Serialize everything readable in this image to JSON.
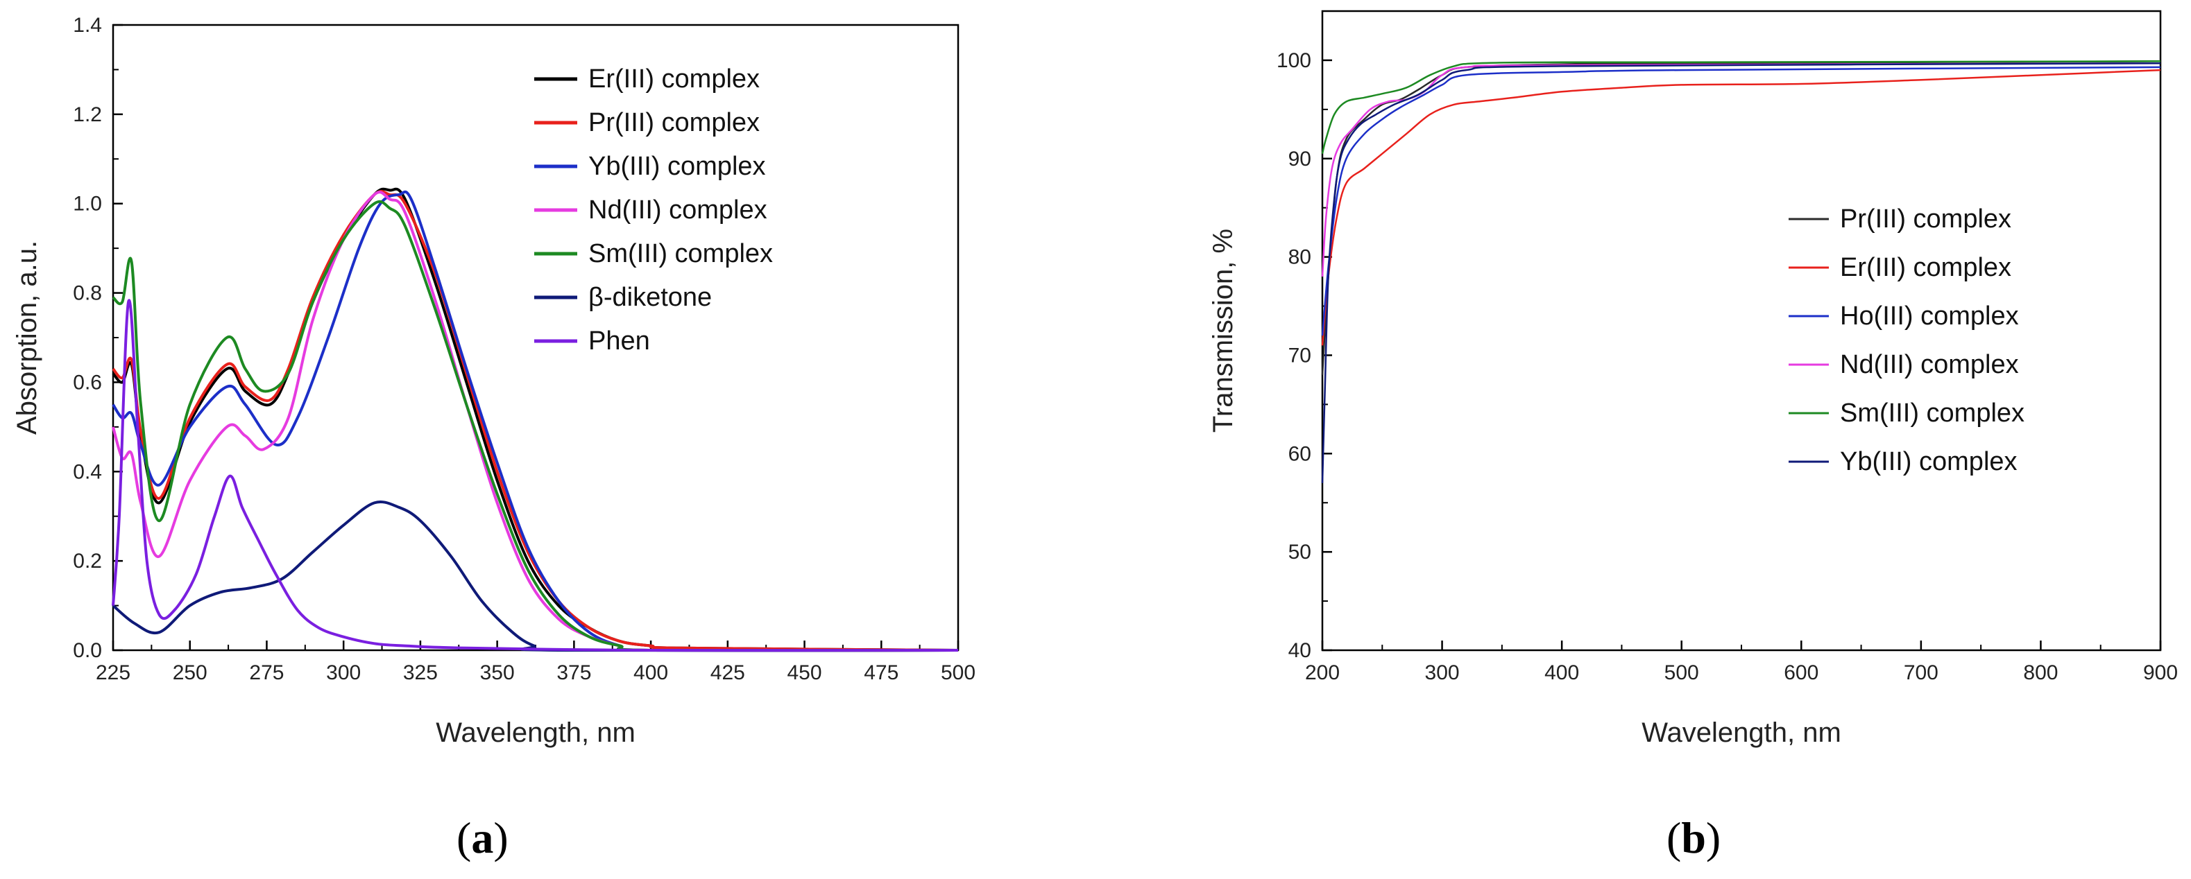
{
  "chart_data": [
    {
      "id": "a",
      "type": "line",
      "panel_label": "a",
      "title": "",
      "xlabel": "Wavelength, nm",
      "ylabel": "Absorption, a.u.",
      "xlim": [
        225,
        500
      ],
      "ylim": [
        0.0,
        1.4
      ],
      "xticks": [
        "225",
        "250",
        "275",
        "300",
        "325",
        "350",
        "375",
        "400",
        "425",
        "450",
        "475",
        "500"
      ],
      "yticks": [
        "0.0",
        "0.2",
        "0.4",
        "0.6",
        "0.8",
        "1.0",
        "1.2",
        "1.4"
      ],
      "legend_position": "top-right",
      "series": [
        {
          "name": "Er(III) complex",
          "color": "#000000",
          "x": [
            225,
            228,
            231,
            234,
            240,
            250,
            262,
            268,
            276,
            282,
            290,
            300,
            310,
            315,
            320,
            330,
            340,
            350,
            360,
            370,
            380,
            390,
            400,
            410,
            500
          ],
          "y": [
            0.62,
            0.6,
            0.64,
            0.48,
            0.33,
            0.51,
            0.63,
            0.58,
            0.55,
            0.62,
            0.78,
            0.92,
            1.02,
            1.03,
            1.01,
            0.82,
            0.6,
            0.38,
            0.2,
            0.1,
            0.05,
            0.02,
            0.01,
            0.005,
            0.0
          ]
        },
        {
          "name": "Pr(III) complex",
          "color": "#e8211c",
          "x": [
            225,
            228,
            231,
            234,
            240,
            250,
            262,
            268,
            276,
            282,
            290,
            300,
            310,
            315,
            320,
            330,
            340,
            350,
            360,
            370,
            380,
            390,
            400,
            410,
            500
          ],
          "y": [
            0.63,
            0.61,
            0.65,
            0.49,
            0.34,
            0.52,
            0.64,
            0.59,
            0.56,
            0.63,
            0.79,
            0.93,
            1.02,
            1.02,
            1.0,
            0.84,
            0.62,
            0.4,
            0.22,
            0.11,
            0.05,
            0.02,
            0.01,
            0.005,
            0.0
          ]
        },
        {
          "name": "Yb(III) complex",
          "color": "#1c2fc8",
          "x": [
            225,
            228,
            231,
            234,
            240,
            250,
            262,
            268,
            278,
            285,
            295,
            305,
            312,
            318,
            322,
            330,
            340,
            350,
            360,
            370,
            380,
            390,
            400,
            500
          ],
          "y": [
            0.55,
            0.52,
            0.53,
            0.46,
            0.37,
            0.5,
            0.59,
            0.55,
            0.46,
            0.52,
            0.7,
            0.9,
            1.0,
            1.02,
            1.01,
            0.85,
            0.63,
            0.42,
            0.23,
            0.11,
            0.04,
            0.01,
            0.0,
            0.0
          ]
        },
        {
          "name": "Nd(III) complex",
          "color": "#e63be0",
          "x": [
            225,
            228,
            231,
            234,
            240,
            250,
            262,
            268,
            274,
            282,
            290,
            300,
            310,
            315,
            320,
            330,
            340,
            350,
            360,
            370,
            380,
            390,
            400,
            500
          ],
          "y": [
            0.5,
            0.43,
            0.44,
            0.33,
            0.21,
            0.38,
            0.5,
            0.48,
            0.45,
            0.52,
            0.74,
            0.92,
            1.02,
            1.01,
            0.98,
            0.78,
            0.55,
            0.33,
            0.16,
            0.07,
            0.03,
            0.01,
            0.0,
            0.0
          ]
        },
        {
          "name": "Sm(III) complex",
          "color": "#1d8a22",
          "x": [
            225,
            228,
            231,
            234,
            240,
            250,
            262,
            268,
            274,
            282,
            290,
            300,
            310,
            315,
            320,
            330,
            340,
            350,
            360,
            370,
            380,
            390,
            400,
            500
          ],
          "y": [
            0.79,
            0.78,
            0.87,
            0.55,
            0.29,
            0.55,
            0.7,
            0.63,
            0.58,
            0.62,
            0.78,
            0.92,
            1.0,
            0.99,
            0.95,
            0.76,
            0.55,
            0.35,
            0.18,
            0.08,
            0.03,
            0.01,
            0.0,
            0.0
          ]
        },
        {
          "name": "β-diketone",
          "color": "#0f1a78",
          "x": [
            225,
            232,
            240,
            250,
            260,
            270,
            280,
            290,
            300,
            310,
            318,
            325,
            335,
            345,
            355,
            362,
            370,
            500
          ],
          "y": [
            0.1,
            0.06,
            0.04,
            0.1,
            0.13,
            0.14,
            0.16,
            0.22,
            0.28,
            0.33,
            0.32,
            0.29,
            0.21,
            0.11,
            0.04,
            0.01,
            0.0,
            0.0
          ]
        },
        {
          "name": "Phen",
          "color": "#7a1fe0",
          "x": [
            225,
            227,
            230,
            233,
            236,
            240,
            245,
            252,
            258,
            263,
            267,
            272,
            278,
            285,
            292,
            300,
            310,
            320,
            340,
            400,
            500
          ],
          "y": [
            0.1,
            0.3,
            0.78,
            0.5,
            0.2,
            0.08,
            0.09,
            0.17,
            0.3,
            0.39,
            0.32,
            0.25,
            0.17,
            0.09,
            0.05,
            0.03,
            0.015,
            0.01,
            0.005,
            0.0,
            0.0
          ]
        }
      ]
    },
    {
      "id": "b",
      "type": "line",
      "panel_label": "b",
      "title": "",
      "xlabel": "Wavelength, nm",
      "ylabel": "Transmission, %",
      "xlim": [
        200,
        900
      ],
      "ylim": [
        40,
        105
      ],
      "xticks": [
        "200",
        "300",
        "400",
        "500",
        "600",
        "700",
        "800",
        "900"
      ],
      "yticks": [
        "40",
        "50",
        "60",
        "70",
        "80",
        "90",
        "100"
      ],
      "legend_position": "center-right",
      "series": [
        {
          "name": "Pr(III) complex",
          "color": "#2a2a2a",
          "x": [
            200,
            205,
            212,
            220,
            235,
            250,
            265,
            280,
            300,
            320,
            400,
            500,
            900
          ],
          "y": [
            68,
            78,
            88,
            92,
            94,
            95.5,
            96,
            97,
            98.5,
            99.3,
            99.6,
            99.7,
            99.9
          ]
        },
        {
          "name": "Er(III) complex",
          "color": "#e8211c",
          "x": [
            200,
            205,
            212,
            220,
            235,
            250,
            270,
            290,
            310,
            330,
            360,
            400,
            450,
            500,
            600,
            700,
            800,
            900
          ],
          "y": [
            71,
            78,
            84,
            87.5,
            89,
            90.5,
            92.5,
            94.5,
            95.5,
            95.8,
            96.2,
            96.8,
            97.2,
            97.5,
            97.6,
            98.0,
            98.5,
            99.0
          ]
        },
        {
          "name": "Ho(III) complex",
          "color": "#1c2fc8",
          "x": [
            200,
            205,
            212,
            220,
            235,
            250,
            265,
            285,
            300,
            320,
            400,
            500,
            900
          ],
          "y": [
            72,
            79,
            86,
            90,
            92.5,
            94,
            95.2,
            96.5,
            97.5,
            98.5,
            98.8,
            99.0,
            99.3
          ]
        },
        {
          "name": "Nd(III) complex",
          "color": "#e63be0",
          "x": [
            200,
            203,
            208,
            215,
            225,
            240,
            255,
            270,
            285,
            300,
            320,
            400,
            900
          ],
          "y": [
            78,
            84,
            89,
            91.5,
            93,
            95,
            95.8,
            96,
            96.8,
            98.5,
            99.3,
            99.5,
            99.7
          ]
        },
        {
          "name": "Sm(III) complex",
          "color": "#1d8a22",
          "x": [
            200,
            203,
            210,
            220,
            235,
            250,
            270,
            290,
            310,
            330,
            400,
            500,
            900
          ],
          "y": [
            90.5,
            92,
            94.5,
            95.8,
            96.2,
            96.6,
            97.2,
            98.5,
            99.4,
            99.7,
            99.8,
            99.8,
            99.9
          ]
        },
        {
          "name": "Yb(III) complex",
          "color": "#0f1a78",
          "x": [
            200,
            202,
            205,
            210,
            215,
            222,
            232,
            245,
            260,
            280,
            300,
            320,
            400,
            900
          ],
          "y": [
            57,
            66,
            78,
            86,
            90,
            92,
            93.5,
            94.5,
            95.5,
            96.5,
            98,
            99,
            99.4,
            99.7
          ]
        }
      ]
    }
  ]
}
